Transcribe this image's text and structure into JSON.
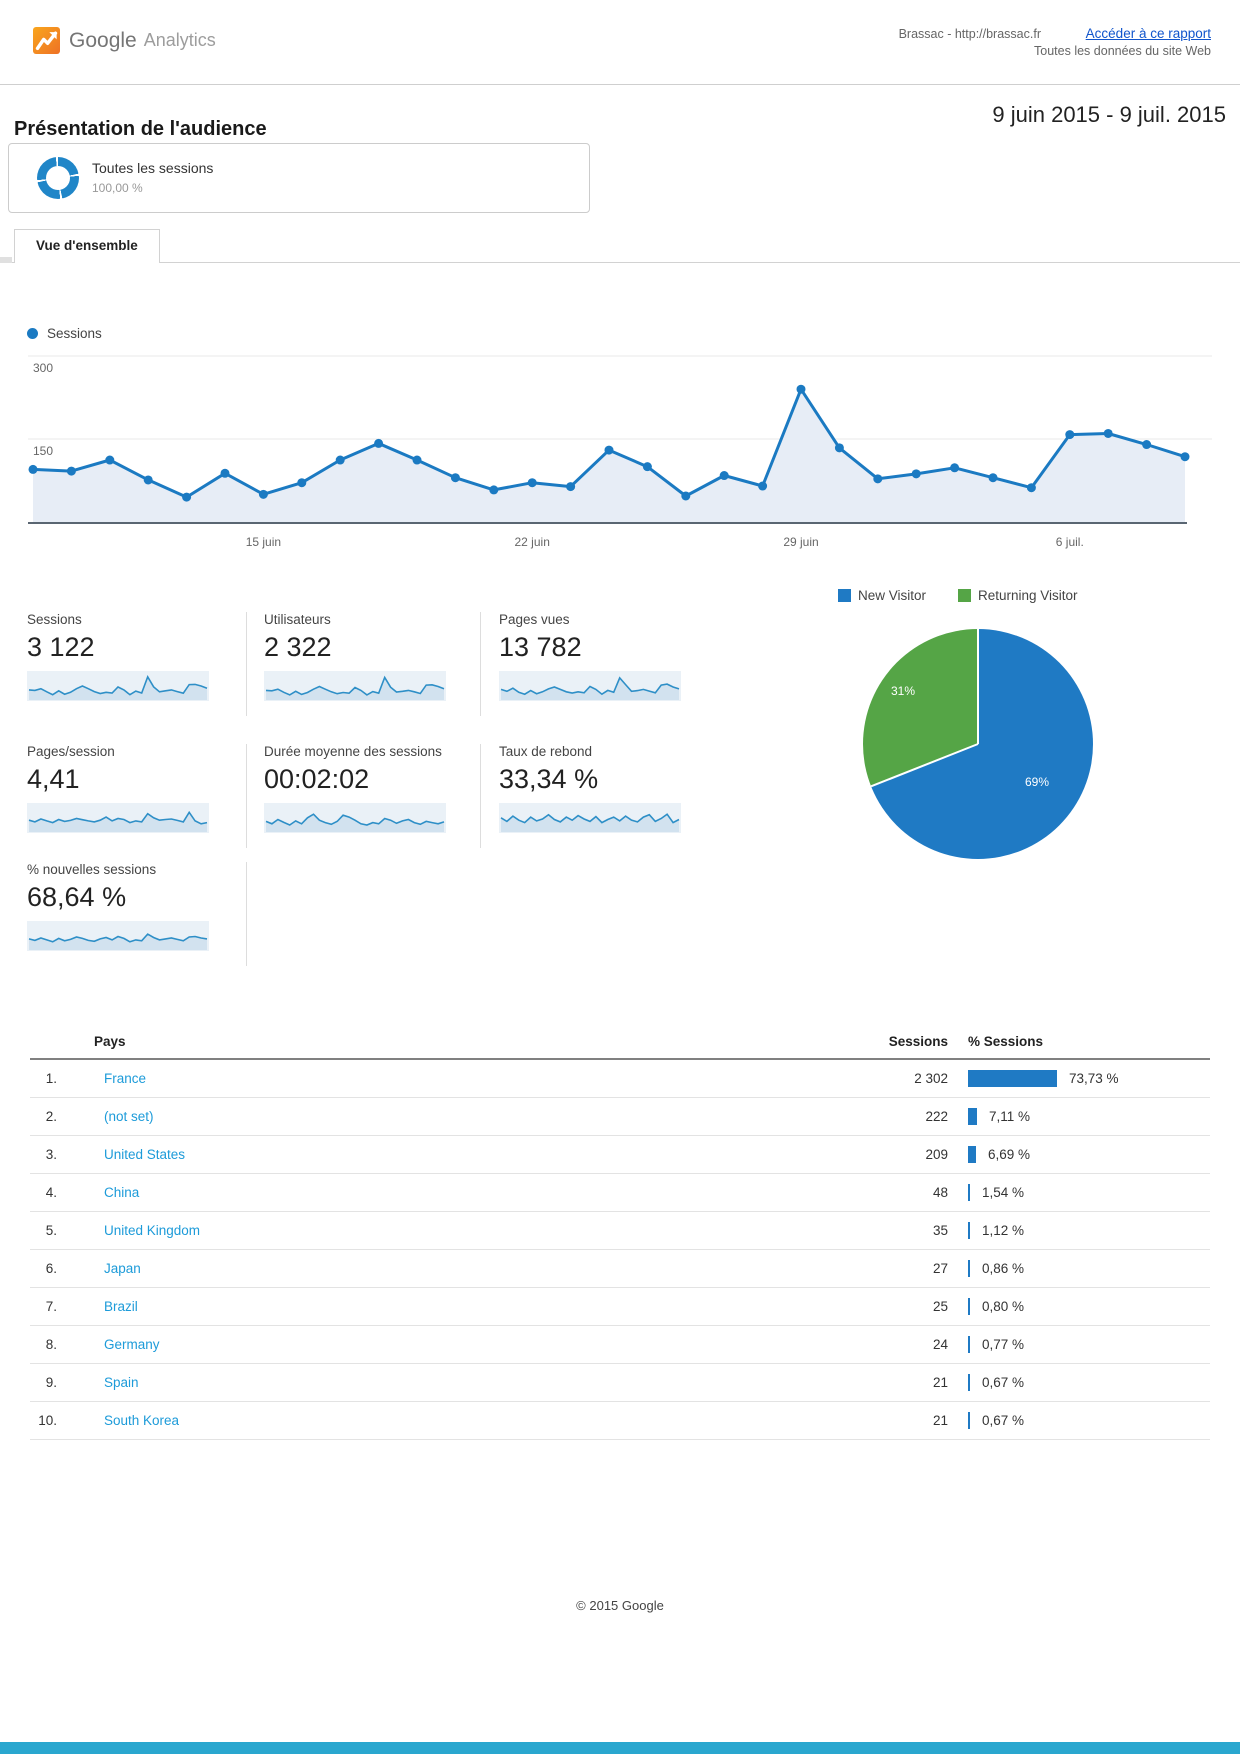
{
  "colors": {
    "accent_blue": "#1b7ac2",
    "area_fill": "#e7edf6",
    "pie_blue": "#1f7ac4",
    "pie_green": "#55a546",
    "link_blue": "#1155cc",
    "country_link_blue": "#1d9bd9",
    "bar_blue": "#1f7ac4",
    "spark_line": "#2e8fc7",
    "spark_fill": "#d2e2ef",
    "spark_bg": "#eaf1f7"
  },
  "header": {
    "brand_google": "Google",
    "brand_product": "Analytics",
    "account_line1": "Brassac - http://brassac.fr",
    "account_line2": "Toutes les données du site Web",
    "report_link": "Accéder à ce rapport"
  },
  "title_row": {
    "page_title": "Présentation de l'audience",
    "date_range": "9 juin 2015 - 9 juil. 2015"
  },
  "segment": {
    "name": "Toutes les sessions",
    "percent": "100,00 %"
  },
  "tab": {
    "label": "Vue d'ensemble"
  },
  "chart_data": [
    {
      "type": "line",
      "name": "sessions-over-time",
      "legend": "Sessions",
      "x": [
        "9 juin",
        "10 juin",
        "11 juin",
        "12 juin",
        "13 juin",
        "14 juin",
        "15 juin",
        "16 juin",
        "17 juin",
        "18 juin",
        "19 juin",
        "20 juin",
        "21 juin",
        "22 juin",
        "23 juin",
        "24 juin",
        "25 juin",
        "26 juin",
        "27 juin",
        "28 juin",
        "29 juin",
        "30 juin",
        "1 juil.",
        "2 juil.",
        "3 juil.",
        "4 juil.",
        "5 juil.",
        "6 juil.",
        "7 juil.",
        "8 juil.",
        "9 juil."
      ],
      "values": [
        95,
        92,
        112,
        76,
        45,
        88,
        50,
        71,
        112,
        142,
        112,
        80,
        58,
        71,
        64,
        130,
        100,
        47,
        84,
        65,
        240,
        134,
        78,
        87,
        98,
        80,
        62,
        158,
        160,
        140,
        118
      ],
      "ylim": [
        0,
        300
      ],
      "yticks": [
        150,
        300
      ],
      "xtick_labels": [
        "15 juin",
        "22 juin",
        "29 juin",
        "6 juil."
      ],
      "xtick_days": [
        6,
        13,
        20,
        27
      ],
      "grid": true,
      "legend_position": "top-left"
    },
    {
      "type": "pie",
      "name": "visitor-type",
      "labels": [
        "New Visitor",
        "Returning Visitor"
      ],
      "values": [
        69,
        31
      ],
      "value_labels": [
        "69%",
        "31%"
      ],
      "colors": [
        "#1f7ac4",
        "#55a546"
      ]
    }
  ],
  "metrics": [
    {
      "label": "Sessions",
      "value": "3 122",
      "spark": [
        38,
        36,
        43,
        30,
        18,
        34,
        20,
        28,
        43,
        54,
        43,
        31,
        23,
        28,
        25,
        50,
        38,
        18,
        33,
        25,
        92,
        51,
        30,
        34,
        38,
        31,
        24,
        60,
        61,
        54,
        45
      ]
    },
    {
      "label": "Utilisateurs",
      "value": "2 322",
      "spark": [
        36,
        34,
        41,
        28,
        17,
        32,
        19,
        27,
        41,
        52,
        41,
        30,
        22,
        27,
        24,
        48,
        36,
        17,
        31,
        24,
        90,
        49,
        29,
        32,
        36,
        30,
        23,
        58,
        59,
        52,
        43
      ]
    },
    {
      "label": "Pages vues",
      "value": "13 782",
      "spark": [
        40,
        32,
        45,
        28,
        20,
        35,
        22,
        30,
        42,
        50,
        40,
        30,
        25,
        30,
        26,
        52,
        40,
        20,
        36,
        28,
        88,
        60,
        32,
        35,
        40,
        33,
        26,
        58,
        62,
        50,
        42
      ]
    },
    {
      "label": "Pages/session",
      "value": "4,41",
      "spark": [
        45,
        38,
        50,
        42,
        35,
        48,
        40,
        44,
        52,
        47,
        42,
        38,
        45,
        58,
        42,
        52,
        48,
        35,
        42,
        38,
        72,
        55,
        45,
        48,
        50,
        44,
        38,
        78,
        42,
        30,
        35
      ]
    },
    {
      "label": "Durée moyenne des sessions",
      "value": "00:02:02",
      "spark": [
        40,
        30,
        48,
        36,
        25,
        42,
        30,
        55,
        70,
        45,
        35,
        28,
        40,
        66,
        58,
        45,
        30,
        25,
        35,
        30,
        52,
        45,
        32,
        42,
        48,
        35,
        28,
        40,
        35,
        30,
        38
      ]
    },
    {
      "label": "Taux de rebond",
      "value": "33,34 %",
      "spark": [
        55,
        40,
        62,
        45,
        35,
        58,
        42,
        50,
        68,
        48,
        38,
        58,
        45,
        64,
        50,
        40,
        60,
        35,
        48,
        58,
        42,
        62,
        45,
        38,
        58,
        68,
        40,
        52,
        70,
        35,
        48
      ]
    },
    {
      "label": "% nouvelles sessions",
      "value": "68,64 %",
      "spark": [
        42,
        36,
        46,
        38,
        30,
        44,
        34,
        40,
        50,
        44,
        36,
        32,
        42,
        48,
        38,
        52,
        44,
        30,
        38,
        34,
        62,
        48,
        38,
        42,
        46,
        40,
        34,
        50,
        52,
        46,
        42
      ]
    }
  ],
  "table": {
    "headers": {
      "country": "Pays",
      "sessions": "Sessions",
      "pct_sessions": "% Sessions"
    },
    "rows": [
      {
        "rank": "1.",
        "country": "France",
        "sessions": "2 302",
        "pct": "73,73 %",
        "pct_value": 73.73
      },
      {
        "rank": "2.",
        "country": "(not set)",
        "sessions": "222",
        "pct": "7,11 %",
        "pct_value": 7.11
      },
      {
        "rank": "3.",
        "country": "United States",
        "sessions": "209",
        "pct": "6,69 %",
        "pct_value": 6.69
      },
      {
        "rank": "4.",
        "country": "China",
        "sessions": "48",
        "pct": "1,54 %",
        "pct_value": 1.54
      },
      {
        "rank": "5.",
        "country": "United Kingdom",
        "sessions": "35",
        "pct": "1,12 %",
        "pct_value": 1.12
      },
      {
        "rank": "6.",
        "country": "Japan",
        "sessions": "27",
        "pct": "0,86 %",
        "pct_value": 0.86
      },
      {
        "rank": "7.",
        "country": "Brazil",
        "sessions": "25",
        "pct": "0,80 %",
        "pct_value": 0.8
      },
      {
        "rank": "8.",
        "country": "Germany",
        "sessions": "24",
        "pct": "0,77 %",
        "pct_value": 0.77
      },
      {
        "rank": "9.",
        "country": "Spain",
        "sessions": "21",
        "pct": "0,67 %",
        "pct_value": 0.67
      },
      {
        "rank": "10.",
        "country": "South Korea",
        "sessions": "21",
        "pct": "0,67 %",
        "pct_value": 0.67
      }
    ]
  },
  "footer": {
    "copyright": "© 2015 Google"
  }
}
